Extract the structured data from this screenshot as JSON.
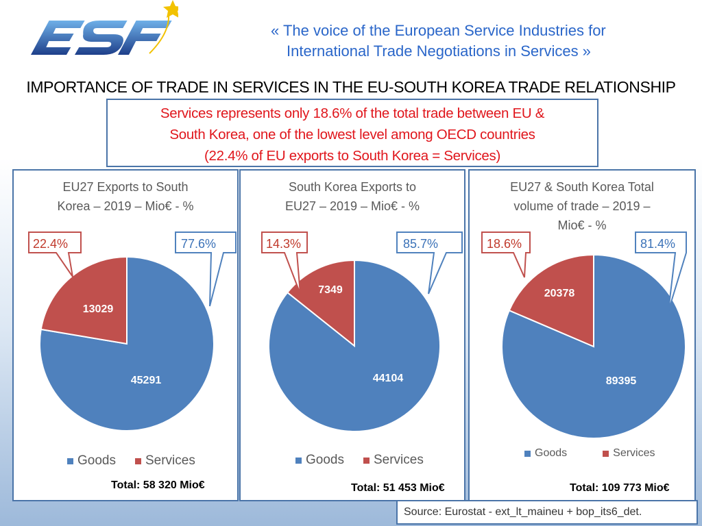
{
  "header": {
    "tagline_line1": "«  The voice of the European Service Industries for",
    "tagline_line2": "International Trade Negotiations in Services  »",
    "title": "IMPORTANCE OF TRADE IN SERVICES IN THE EU-SOUTH KOREA TRADE RELATIONSHIP",
    "subtitle_line1": "Services represents only 18.6% of the total trade between EU &",
    "subtitle_line2": "South Korea, one of the lowest level among OECD countries",
    "subtitle_line3": "(22.4% of EU exports to South Korea = Services)"
  },
  "colors": {
    "goods": "#4f81bd",
    "services": "#c0504d",
    "frame": "#4a74a8",
    "tagline": "#2a66c9",
    "highlight": "#e0161c"
  },
  "chart_data": [
    {
      "type": "pie",
      "title_line1": "EU27 Exports to South",
      "title_line2": "Korea – 2019 – Mio€ - %",
      "categories": [
        "Goods",
        "Services"
      ],
      "values": [
        45291,
        13029
      ],
      "value_labels": [
        "45291",
        "13029"
      ],
      "percent_labels": [
        "77.6%",
        "22.4%"
      ],
      "legend": [
        "Goods",
        "Services"
      ],
      "legend_position": "bottom",
      "total": "Total: 58 320 Mio€"
    },
    {
      "type": "pie",
      "title_line1": "South Korea Exports to",
      "title_line2": "EU27 – 2019 – Mio€ - %",
      "categories": [
        "Goods",
        "Services"
      ],
      "values": [
        44104,
        7349
      ],
      "value_labels": [
        "44104",
        "7349"
      ],
      "percent_labels": [
        "85.7%",
        "14.3%"
      ],
      "legend": [
        "Goods",
        "Services"
      ],
      "legend_position": "bottom",
      "total": "Total: 51 453 Mio€"
    },
    {
      "type": "pie",
      "title_line1": "EU27 & South Korea Total",
      "title_line2": "volume of trade – 2019 –",
      "title_line3": "Mio€ - %",
      "categories": [
        "Goods",
        "Services"
      ],
      "values": [
        89395,
        20378
      ],
      "value_labels": [
        "89395",
        "20378"
      ],
      "percent_labels": [
        "81.4%",
        "18.6%"
      ],
      "legend": [
        "Goods",
        "Services"
      ],
      "legend_position": "bottom",
      "total": "Total: 109 773 Mio€"
    }
  ],
  "footer": {
    "source": "Source: Eurostat - ext_lt_maineu + bop_its6_det."
  }
}
